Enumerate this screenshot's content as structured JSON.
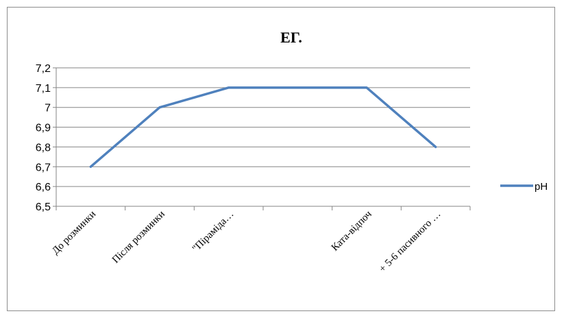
{
  "chart_data": {
    "type": "line",
    "title": "ЕГ.",
    "categories": [
      "До розминки",
      "Після розминки",
      "\"Піраміда…",
      "",
      "Ката-відпоч",
      "+ 5-6 пасивного …"
    ],
    "series": [
      {
        "name": "pH",
        "values": [
          6.7,
          7.0,
          7.1,
          7.1,
          7.1,
          6.8
        ],
        "color": "#4f81bd"
      }
    ],
    "yticks": [
      "6,5",
      "6,6",
      "6,7",
      "6,8",
      "6,9",
      "7",
      "7,1",
      "7,2"
    ],
    "ylim": [
      6.5,
      7.2
    ],
    "grid": true,
    "legend_position": "right"
  }
}
